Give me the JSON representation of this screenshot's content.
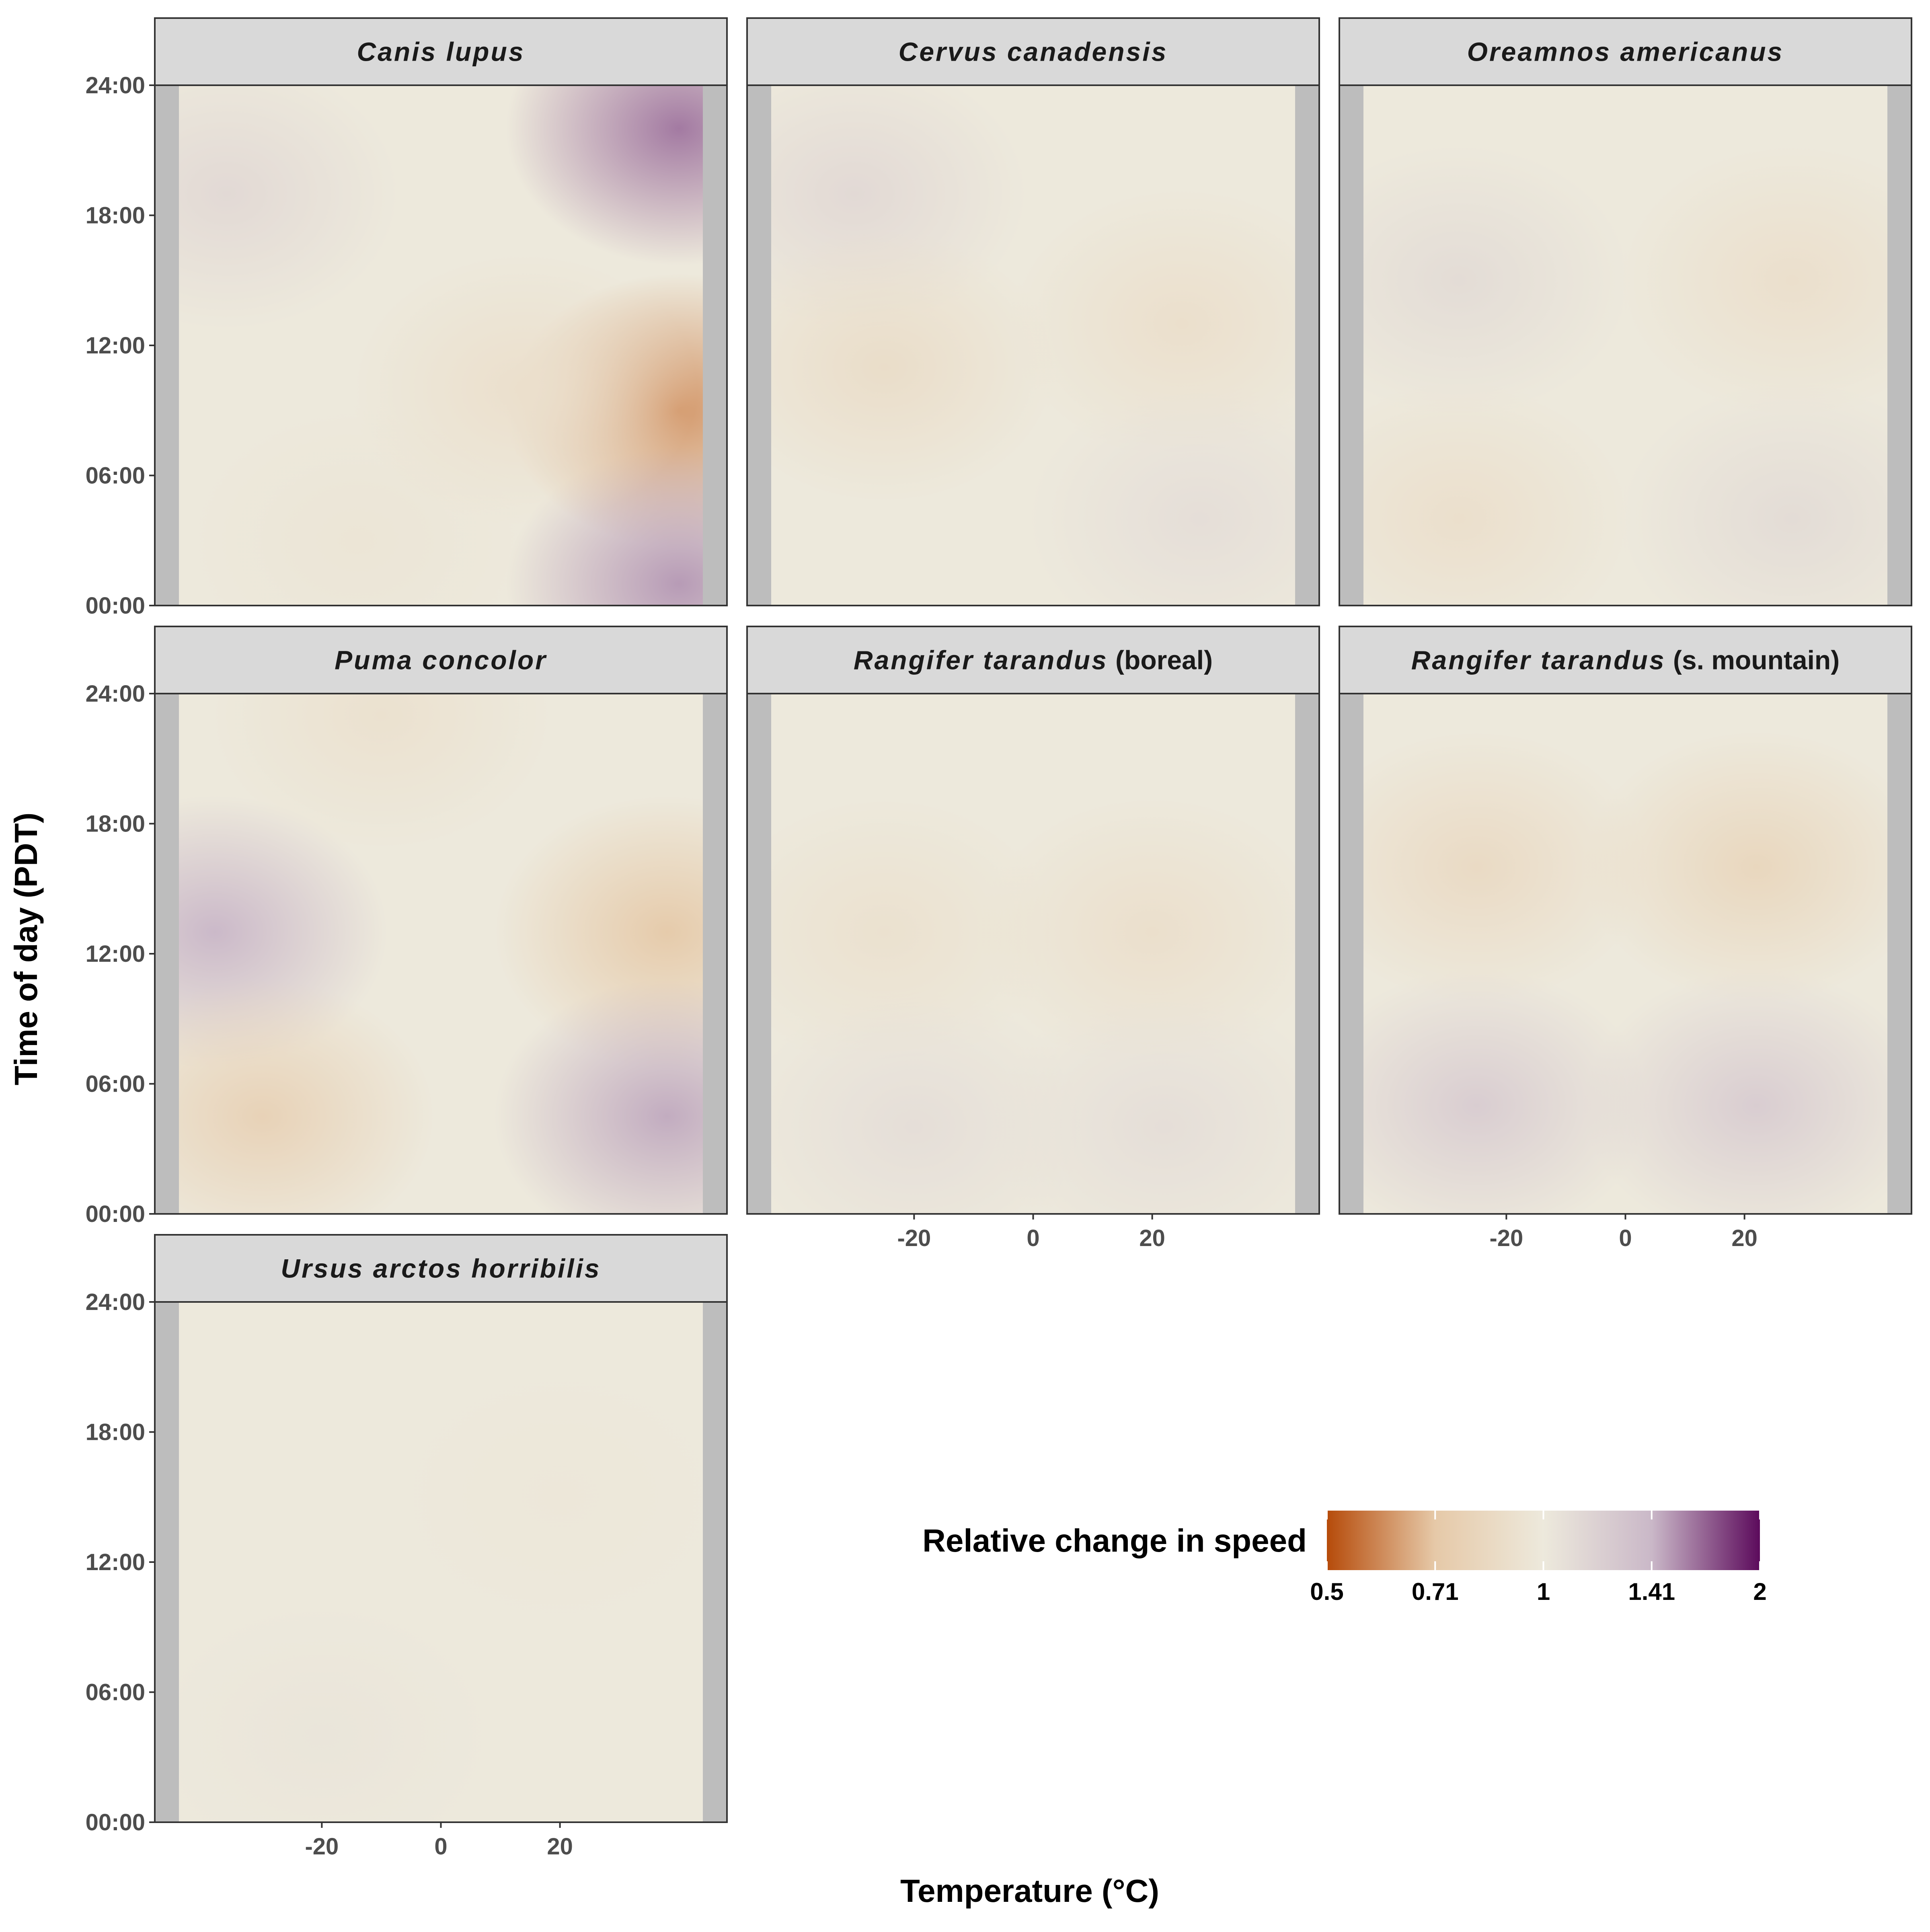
{
  "chart_data": {
    "type": "heatmap",
    "xlabel": "Temperature (°C)",
    "ylabel": "Time of day (PDT)",
    "x_ticks": [
      -20,
      0,
      20
    ],
    "y_ticks": [
      "00:00",
      "06:00",
      "12:00",
      "18:00",
      "24:00"
    ],
    "xlim": [
      -44,
      44
    ],
    "ylim": [
      0,
      24
    ],
    "legend": {
      "title": "Relative change in speed",
      "ticks": [
        "0.5",
        "0.71",
        "1",
        "1.41",
        "2"
      ],
      "colors": [
        "#b64b0a",
        "#e6c9a8",
        "#ede9dc",
        "#cab8c8",
        "#5c0b5c"
      ],
      "placement": "bottom-right"
    },
    "na_color": "#bdbdbd",
    "panels": [
      {
        "name": "Canis lupus",
        "suffix": "",
        "show_x_ticks": false,
        "blobs": [
          {
            "x": 40,
            "y": 9,
            "v": 0.62
          },
          {
            "x": 40,
            "y": 22,
            "v": 1.6
          },
          {
            "x": 40,
            "y": 1,
            "v": 1.5
          },
          {
            "x": -36,
            "y": 19,
            "v": 1.12
          },
          {
            "x": -14,
            "y": 3,
            "v": 0.96
          },
          {
            "x": 14,
            "y": 10,
            "v": 0.9
          }
        ]
      },
      {
        "name": "Cervus canadensis",
        "suffix": "",
        "show_x_ticks": false,
        "blobs": [
          {
            "x": -30,
            "y": 19,
            "v": 1.12
          },
          {
            "x": -25,
            "y": 11,
            "v": 0.88
          },
          {
            "x": 25,
            "y": 13,
            "v": 0.9
          },
          {
            "x": 28,
            "y": 4,
            "v": 1.08
          }
        ]
      },
      {
        "name": "Oreamnos americanus",
        "suffix": "",
        "show_x_ticks": false,
        "blobs": [
          {
            "x": -28,
            "y": 15,
            "v": 1.1
          },
          {
            "x": 28,
            "y": 15,
            "v": 0.9
          },
          {
            "x": -28,
            "y": 4,
            "v": 0.9
          },
          {
            "x": 28,
            "y": 4,
            "v": 1.1
          }
        ]
      },
      {
        "name": "Puma concolor",
        "suffix": "",
        "show_x_ticks": false,
        "blobs": [
          {
            "x": -38,
            "y": 13,
            "v": 1.4
          },
          {
            "x": 38,
            "y": 13,
            "v": 0.72
          },
          {
            "x": -30,
            "y": 4.5,
            "v": 0.78
          },
          {
            "x": 38,
            "y": 4.5,
            "v": 1.45
          },
          {
            "x": -10,
            "y": 23,
            "v": 0.92
          }
        ]
      },
      {
        "name": "Rangifer tarandus",
        "suffix": "(boreal)",
        "show_x_ticks": true,
        "blobs": [
          {
            "x": -25,
            "y": 13,
            "v": 0.92
          },
          {
            "x": 20,
            "y": 13,
            "v": 0.9
          },
          {
            "x": -20,
            "y": 4,
            "v": 1.08
          },
          {
            "x": 22,
            "y": 4,
            "v": 1.08
          }
        ]
      },
      {
        "name": "Rangifer tarandus",
        "suffix": "(s. mountain)",
        "show_x_ticks": true,
        "blobs": [
          {
            "x": -25,
            "y": 16,
            "v": 0.85
          },
          {
            "x": 22,
            "y": 16,
            "v": 0.82
          },
          {
            "x": -25,
            "y": 5,
            "v": 1.22
          },
          {
            "x": 22,
            "y": 5,
            "v": 1.22
          }
        ]
      },
      {
        "name": "Ursus arctos horribilis",
        "suffix": "",
        "show_x_ticks": true,
        "blobs": [
          {
            "x": -20,
            "y": 4,
            "v": 1.03
          },
          {
            "x": 20,
            "y": 15,
            "v": 0.98
          }
        ]
      }
    ]
  }
}
